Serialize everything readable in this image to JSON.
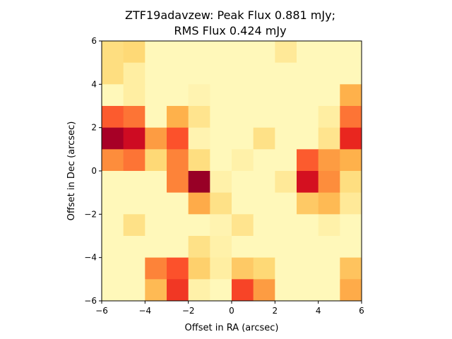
{
  "chart_data": {
    "type": "heatmap",
    "title_lines": [
      "ZTF19adavzew: Peak Flux 0.881 mJy;",
      "RMS Flux 0.424 mJy"
    ],
    "xlabel": "Offset in RA (arcsec)",
    "ylabel": "Offset in Dec (arcsec)",
    "xlim": [
      -6,
      6
    ],
    "ylim": [
      -6,
      6
    ],
    "xticks": [
      -6,
      -4,
      -2,
      0,
      2,
      4,
      6
    ],
    "yticks": [
      -6,
      -4,
      -2,
      0,
      2,
      4,
      6
    ],
    "xtick_labels": [
      "−6",
      "−4",
      "−2",
      "0",
      "2",
      "4",
      "6"
    ],
    "ytick_labels": [
      "−6",
      "−4",
      "−2",
      "0",
      "2",
      "4",
      "6"
    ],
    "colormap": "YlOrRd",
    "value_range": [
      0,
      1
    ],
    "grid": false,
    "rows_top_to_bottom": [
      [
        0.22,
        0.25,
        0.05,
        0.05,
        0.05,
        0.05,
        0.05,
        0.05,
        0.15,
        0.05,
        0.05,
        0.05
      ],
      [
        0.22,
        0.12,
        0.05,
        0.05,
        0.05,
        0.05,
        0.05,
        0.05,
        0.05,
        0.05,
        0.05,
        0.05
      ],
      [
        0.05,
        0.12,
        0.05,
        0.05,
        0.08,
        0.05,
        0.05,
        0.05,
        0.05,
        0.05,
        0.05,
        0.38
      ],
      [
        0.6,
        0.55,
        0.05,
        0.38,
        0.18,
        0.05,
        0.05,
        0.05,
        0.05,
        0.05,
        0.12,
        0.55
      ],
      [
        0.92,
        0.82,
        0.45,
        0.62,
        0.08,
        0.05,
        0.05,
        0.2,
        0.05,
        0.05,
        0.18,
        0.72
      ],
      [
        0.5,
        0.55,
        0.25,
        0.52,
        0.22,
        0.05,
        0.1,
        0.05,
        0.05,
        0.6,
        0.45,
        0.38
      ],
      [
        0.05,
        0.05,
        0.05,
        0.52,
        0.95,
        0.1,
        0.05,
        0.05,
        0.15,
        0.8,
        0.5,
        0.22
      ],
      [
        0.05,
        0.05,
        0.05,
        0.05,
        0.4,
        0.2,
        0.05,
        0.05,
        0.05,
        0.3,
        0.35,
        0.15
      ],
      [
        0.05,
        0.2,
        0.05,
        0.05,
        0.05,
        0.08,
        0.18,
        0.05,
        0.05,
        0.05,
        0.1,
        0.05
      ],
      [
        0.05,
        0.05,
        0.05,
        0.05,
        0.2,
        0.1,
        0.05,
        0.05,
        0.05,
        0.05,
        0.05,
        0.05
      ],
      [
        0.05,
        0.05,
        0.52,
        0.62,
        0.28,
        0.12,
        0.3,
        0.25,
        0.05,
        0.05,
        0.05,
        0.32
      ],
      [
        0.05,
        0.05,
        0.35,
        0.68,
        0.1,
        0.05,
        0.65,
        0.45,
        0.05,
        0.05,
        0.05,
        0.4
      ]
    ]
  }
}
